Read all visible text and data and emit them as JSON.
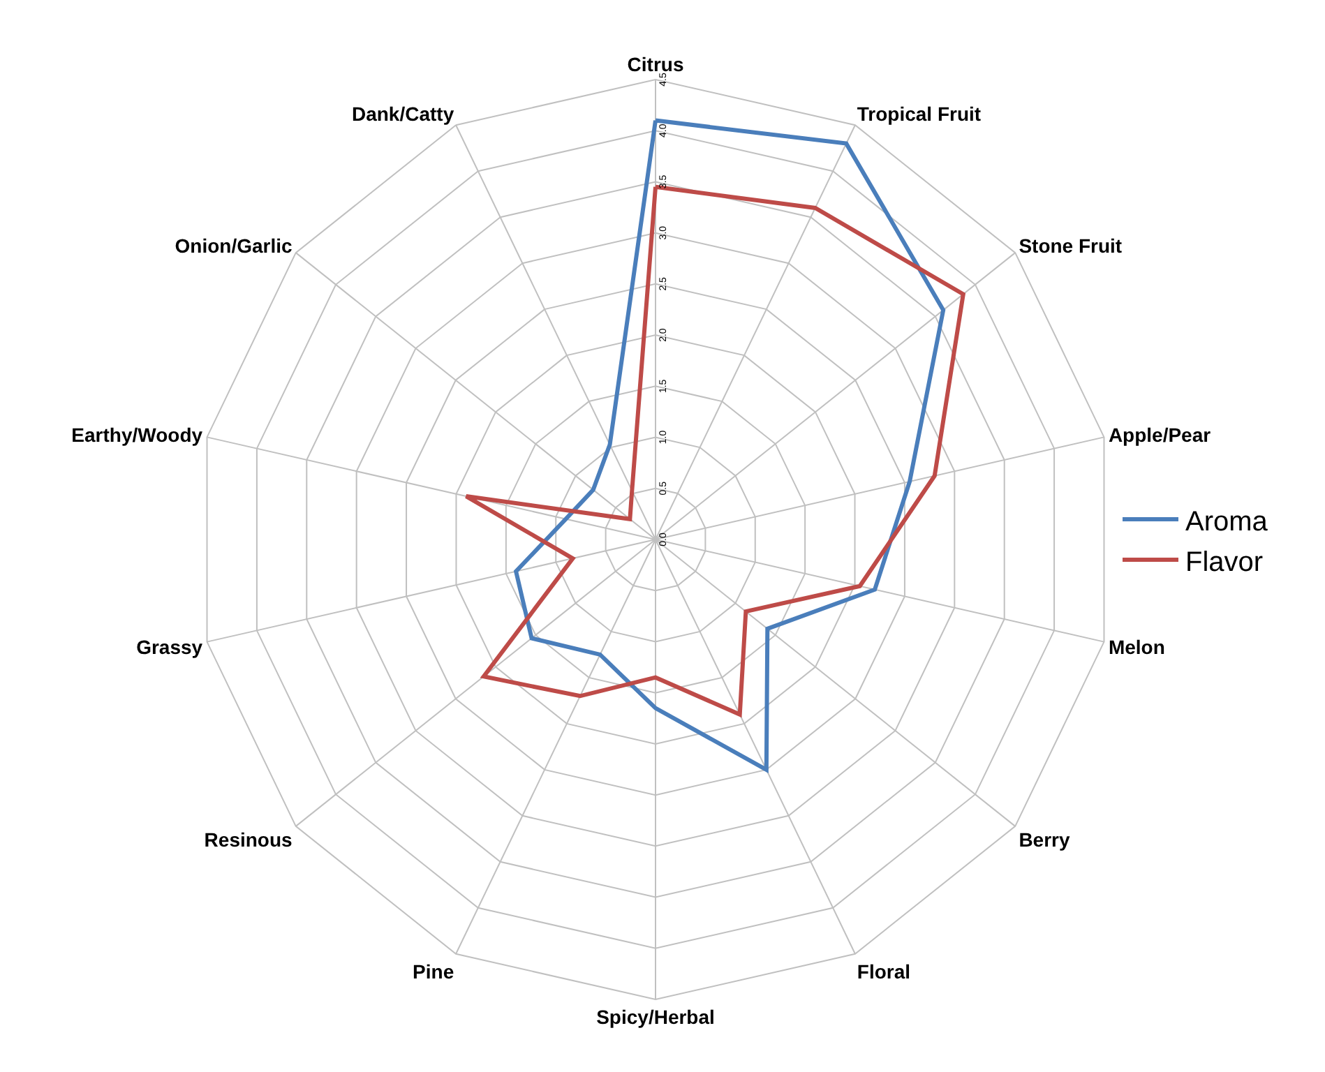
{
  "chart_data": {
    "type": "radar",
    "categories": [
      "Citrus",
      "Tropical Fruit",
      "Stone Fruit",
      "Apple/Pear",
      "Melon",
      "Berry",
      "Floral",
      "Spicy/Herbal",
      "Pine",
      "Resinous",
      "Grassy",
      "Earthy/Woody",
      "Onion/Garlic",
      "Dank/Catty"
    ],
    "series": [
      {
        "name": "Aroma",
        "color": "#4a7ebb",
        "values": [
          4.1,
          4.3,
          3.6,
          2.55,
          2.2,
          1.4,
          2.5,
          1.65,
          1.25,
          1.55,
          1.4,
          0.9,
          0.78,
          1.03
        ]
      },
      {
        "name": "Flavor",
        "color": "#be4b48",
        "values": [
          3.45,
          3.6,
          3.85,
          2.8,
          2.05,
          1.13,
          1.9,
          1.35,
          1.7,
          2.15,
          0.83,
          1.9,
          0.32,
          0.53
        ]
      }
    ],
    "ylim": [
      0,
      4.5
    ],
    "yticks": [
      {
        "value": 0,
        "label": "0.0"
      },
      {
        "value": 0.5,
        "label": "0.5"
      },
      {
        "value": 1,
        "label": "1.0"
      },
      {
        "value": 1.5,
        "label": "1.5"
      },
      {
        "value": 2,
        "label": "2.0"
      },
      {
        "value": 2.5,
        "label": "2.5"
      },
      {
        "value": 3,
        "label": "3.0"
      },
      {
        "value": 3.5,
        "label": "3.5"
      },
      {
        "value": 4,
        "label": "4.0"
      },
      {
        "value": 4.5,
        "label": "4.5"
      }
    ],
    "legend": "right",
    "marker": "none",
    "line_style": "solid"
  }
}
